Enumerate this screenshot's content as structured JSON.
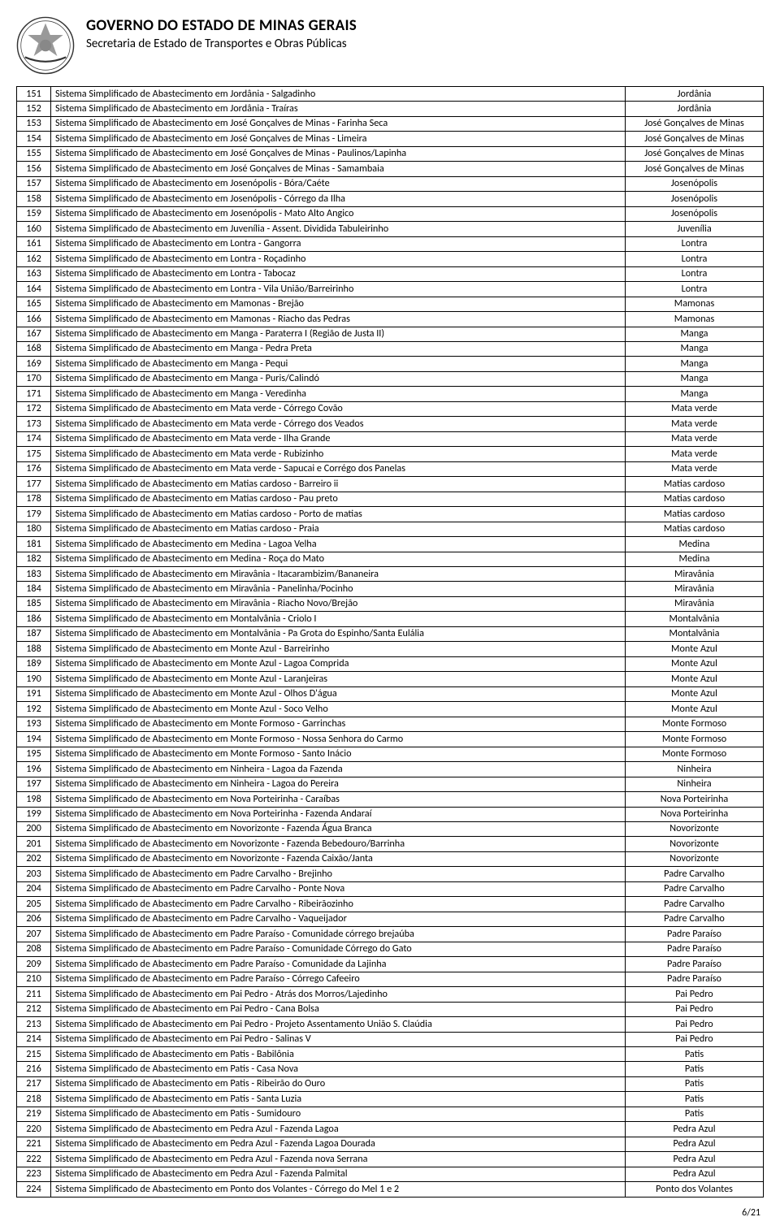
{
  "header": {
    "title": "GOVERNO DO ESTADO DE MINAS GERAIS",
    "subtitle": "Secretaria de Estado de Transportes e Obras Públicas"
  },
  "page_number": "6/21",
  "table": {
    "columns": [
      "num",
      "description",
      "municipality"
    ],
    "rows": [
      {
        "n": "151",
        "d": "Sistema Simplificado de Abastecimento em Jordânia - Salgadinho",
        "m": "Jordânia"
      },
      {
        "n": "152",
        "d": "Sistema Simplificado de Abastecimento em Jordânia - Traíras",
        "m": "Jordânia"
      },
      {
        "n": "153",
        "d": "Sistema Simplificado de Abastecimento em José Gonçalves de Minas  - Farinha Seca",
        "m": "José Gonçalves de Minas"
      },
      {
        "n": "154",
        "d": "Sistema Simplificado de Abastecimento em José Gonçalves de Minas  - Limeira",
        "m": "José Gonçalves de Minas"
      },
      {
        "n": "155",
        "d": "Sistema Simplificado de Abastecimento em José Gonçalves de Minas  - Paulinos/Lapinha",
        "m": "José Gonçalves de Minas"
      },
      {
        "n": "156",
        "d": "Sistema Simplificado de Abastecimento em José Gonçalves de Minas  - Samambaia",
        "m": "José Gonçalves de Minas"
      },
      {
        "n": "157",
        "d": "Sistema Simplificado de Abastecimento em Josenópolis - Bóra/Caéte",
        "m": "Josenópolis"
      },
      {
        "n": "158",
        "d": "Sistema Simplificado de Abastecimento em Josenópolis - Córrego da Ilha",
        "m": "Josenópolis"
      },
      {
        "n": "159",
        "d": "Sistema Simplificado de Abastecimento em Josenópolis - Mato Alto Angico",
        "m": "Josenópolis"
      },
      {
        "n": "160",
        "d": "Sistema Simplificado de Abastecimento em Juvenília - Assent. Dividida Tabuleirinho",
        "m": "Juvenília"
      },
      {
        "n": "161",
        "d": "Sistema Simplificado de Abastecimento em Lontra - Gangorra",
        "m": "Lontra"
      },
      {
        "n": "162",
        "d": "Sistema Simplificado de Abastecimento em Lontra - Roçadinho",
        "m": "Lontra"
      },
      {
        "n": "163",
        "d": "Sistema Simplificado de Abastecimento em Lontra - Tabocaz",
        "m": "Lontra"
      },
      {
        "n": "164",
        "d": "Sistema Simplificado de Abastecimento em Lontra - Vila União/Barreirinho",
        "m": "Lontra"
      },
      {
        "n": "165",
        "d": "Sistema Simplificado de Abastecimento em Mamonas - Brejão",
        "m": "Mamonas"
      },
      {
        "n": "166",
        "d": "Sistema Simplificado de Abastecimento em Mamonas - Riacho das Pedras",
        "m": "Mamonas"
      },
      {
        "n": "167",
        "d": "Sistema Simplificado de Abastecimento em Manga - Paraterra I (Região de Justa II)",
        "m": "Manga"
      },
      {
        "n": "168",
        "d": "Sistema Simplificado de Abastecimento em Manga - Pedra Preta",
        "m": "Manga"
      },
      {
        "n": "169",
        "d": "Sistema Simplificado de Abastecimento em Manga - Pequi",
        "m": "Manga"
      },
      {
        "n": "170",
        "d": "Sistema Simplificado de Abastecimento em Manga - Puris/Calindó",
        "m": "Manga"
      },
      {
        "n": "171",
        "d": "Sistema Simplificado de Abastecimento em Manga - Veredinha",
        "m": "Manga"
      },
      {
        "n": "172",
        "d": "Sistema Simplificado de Abastecimento em Mata verde - Córrego Covão",
        "m": "Mata verde"
      },
      {
        "n": "173",
        "d": "Sistema Simplificado de Abastecimento em Mata verde - Córrego dos Veados",
        "m": "Mata verde"
      },
      {
        "n": "174",
        "d": "Sistema Simplificado de Abastecimento em Mata verde - Ilha Grande",
        "m": "Mata verde"
      },
      {
        "n": "175",
        "d": "Sistema Simplificado de Abastecimento em Mata verde - Rubizinho",
        "m": "Mata verde"
      },
      {
        "n": "176",
        "d": "Sistema Simplificado de Abastecimento em Mata verde - Sapucai e Corrégo dos Panelas",
        "m": "Mata verde"
      },
      {
        "n": "177",
        "d": "Sistema Simplificado de Abastecimento em Matias cardoso - Barreiro ii",
        "m": "Matias cardoso"
      },
      {
        "n": "178",
        "d": "Sistema Simplificado de Abastecimento em Matias cardoso - Pau preto",
        "m": "Matias cardoso"
      },
      {
        "n": "179",
        "d": "Sistema Simplificado de Abastecimento em Matias cardoso - Porto de matias",
        "m": "Matias cardoso"
      },
      {
        "n": "180",
        "d": "Sistema Simplificado de Abastecimento em Matias cardoso - Praia",
        "m": "Matias cardoso"
      },
      {
        "n": "181",
        "d": "Sistema Simplificado de Abastecimento em Medina - Lagoa Velha",
        "m": "Medina"
      },
      {
        "n": "182",
        "d": "Sistema Simplificado de Abastecimento em Medina - Roça do Mato",
        "m": "Medina"
      },
      {
        "n": "183",
        "d": "Sistema Simplificado de Abastecimento em Miravânia - Itacarambizim/Bananeira",
        "m": "Miravânia"
      },
      {
        "n": "184",
        "d": "Sistema Simplificado de Abastecimento em Miravânia - Panelinha/Pocinho",
        "m": "Miravânia"
      },
      {
        "n": "185",
        "d": "Sistema Simplificado de Abastecimento em Miravânia - Riacho Novo/Brejão",
        "m": "Miravânia"
      },
      {
        "n": "186",
        "d": "Sistema Simplificado de Abastecimento em Montalvânia - Criolo I",
        "m": "Montalvânia"
      },
      {
        "n": "187",
        "d": "Sistema Simplificado de Abastecimento em Montalvânia - Pa Grota do Espinho/Santa Eulália",
        "m": "Montalvânia"
      },
      {
        "n": "188",
        "d": "Sistema Simplificado de Abastecimento em Monte Azul - Barreirinho",
        "m": "Monte Azul"
      },
      {
        "n": "189",
        "d": "Sistema Simplificado de Abastecimento em Monte Azul - Lagoa Comprida",
        "m": "Monte Azul"
      },
      {
        "n": "190",
        "d": "Sistema Simplificado de Abastecimento em Monte Azul - Laranjeiras",
        "m": "Monte Azul"
      },
      {
        "n": "191",
        "d": "Sistema Simplificado de Abastecimento em Monte Azul - Olhos D'água",
        "m": "Monte Azul"
      },
      {
        "n": "192",
        "d": "Sistema Simplificado de Abastecimento em Monte Azul - Soco Velho",
        "m": "Monte Azul"
      },
      {
        "n": "193",
        "d": "Sistema Simplificado de Abastecimento em Monte Formoso - Garrinchas",
        "m": "Monte Formoso"
      },
      {
        "n": "194",
        "d": "Sistema Simplificado de Abastecimento em Monte Formoso - Nossa Senhora do Carmo",
        "m": "Monte Formoso"
      },
      {
        "n": "195",
        "d": "Sistema Simplificado de Abastecimento em Monte Formoso - Santo Inácio",
        "m": "Monte Formoso"
      },
      {
        "n": "196",
        "d": "Sistema Simplificado de Abastecimento em Ninheira - Lagoa da Fazenda",
        "m": "Ninheira"
      },
      {
        "n": "197",
        "d": "Sistema Simplificado de Abastecimento em Ninheira - Lagoa do Pereira",
        "m": "Ninheira"
      },
      {
        "n": "198",
        "d": "Sistema Simplificado de Abastecimento em Nova Porteirinha - Caraíbas",
        "m": "Nova Porteirinha"
      },
      {
        "n": "199",
        "d": "Sistema Simplificado de Abastecimento em Nova Porteirinha - Fazenda Andaraí",
        "m": "Nova Porteirinha"
      },
      {
        "n": "200",
        "d": "Sistema Simplificado de Abastecimento em Novorizonte - Fazenda Água Branca",
        "m": "Novorizonte"
      },
      {
        "n": "201",
        "d": "Sistema Simplificado de Abastecimento em Novorizonte - Fazenda Bebedouro/Barrinha",
        "m": "Novorizonte"
      },
      {
        "n": "202",
        "d": "Sistema Simplificado de Abastecimento em Novorizonte - Fazenda Caixão/Janta",
        "m": "Novorizonte"
      },
      {
        "n": "203",
        "d": "Sistema Simplificado de Abastecimento em Padre Carvalho - Brejinho",
        "m": "Padre Carvalho"
      },
      {
        "n": "204",
        "d": "Sistema Simplificado de Abastecimento em Padre Carvalho - Ponte Nova",
        "m": "Padre Carvalho"
      },
      {
        "n": "205",
        "d": "Sistema Simplificado de Abastecimento em Padre Carvalho - Ribeirãozinho",
        "m": "Padre Carvalho"
      },
      {
        "n": "206",
        "d": "Sistema Simplificado de Abastecimento em Padre Carvalho - Vaqueijador",
        "m": "Padre Carvalho"
      },
      {
        "n": "207",
        "d": "Sistema Simplificado de Abastecimento em Padre Paraíso - Comunidade córrego brejaúba",
        "m": "Padre Paraíso"
      },
      {
        "n": "208",
        "d": "Sistema Simplificado de Abastecimento em Padre Paraíso - Comunidade Córrego do Gato",
        "m": "Padre Paraíso"
      },
      {
        "n": "209",
        "d": "Sistema Simplificado de Abastecimento em Padre Paraíso - Comunidade da Lajinha",
        "m": "Padre Paraíso"
      },
      {
        "n": "210",
        "d": "Sistema Simplificado de Abastecimento em Padre Paraíso - Córrego Cafeeiro",
        "m": "Padre Paraíso"
      },
      {
        "n": "211",
        "d": "Sistema Simplificado de Abastecimento em Pai Pedro - Atrás dos Morros/Lajedinho",
        "m": "Pai Pedro"
      },
      {
        "n": "212",
        "d": "Sistema Simplificado de Abastecimento em Pai Pedro - Cana Bolsa",
        "m": "Pai Pedro"
      },
      {
        "n": "213",
        "d": "Sistema Simplificado de Abastecimento em Pai Pedro - Projeto Assentamento União S. Claúdia",
        "m": "Pai Pedro"
      },
      {
        "n": "214",
        "d": "Sistema Simplificado de Abastecimento em Pai Pedro - Salinas V",
        "m": "Pai Pedro"
      },
      {
        "n": "215",
        "d": "Sistema Simplificado de Abastecimento em Patis - Babilônia",
        "m": "Patis"
      },
      {
        "n": "216",
        "d": "Sistema Simplificado de Abastecimento em Patis - Casa Nova",
        "m": "Patis"
      },
      {
        "n": "217",
        "d": "Sistema Simplificado de Abastecimento em Patis - Ribeirão do Ouro",
        "m": "Patis"
      },
      {
        "n": "218",
        "d": "Sistema Simplificado de Abastecimento em Patis - Santa Luzia",
        "m": "Patis"
      },
      {
        "n": "219",
        "d": "Sistema Simplificado de Abastecimento em Patis - Sumidouro",
        "m": "Patis"
      },
      {
        "n": "220",
        "d": "Sistema Simplificado de Abastecimento em Pedra Azul - Fazenda Lagoa",
        "m": "Pedra Azul"
      },
      {
        "n": "221",
        "d": "Sistema Simplificado de Abastecimento em Pedra Azul - Fazenda Lagoa Dourada",
        "m": "Pedra Azul"
      },
      {
        "n": "222",
        "d": "Sistema Simplificado de Abastecimento em Pedra Azul - Fazenda nova Serrana",
        "m": "Pedra Azul"
      },
      {
        "n": "223",
        "d": "Sistema Simplificado de Abastecimento em Pedra Azul - Fazenda Palmital",
        "m": "Pedra Azul"
      },
      {
        "n": "224",
        "d": "Sistema Simplificado de Abastecimento em Ponto dos Volantes - Córrego do Mel 1 e 2",
        "m": "Ponto dos Volantes"
      }
    ]
  }
}
